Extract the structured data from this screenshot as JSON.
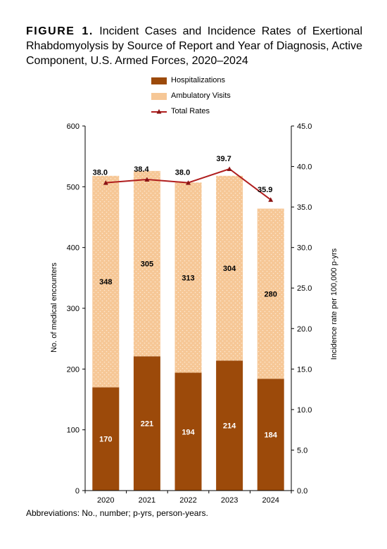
{
  "figure": {
    "label": "FIGURE 1.",
    "title": "Incident Cases and Incidence Rates of Exertional Rhabdomyolysis by Source of Report and Year of Diagnosis, Active Component, U.S. Armed Forces, 2020–2024"
  },
  "footnote": "Abbreviations: No., number; p-yrs, person-years.",
  "colors": {
    "hospitalizations": "#9c4a0a",
    "ambulatory": "#f6c796",
    "ambulatory_dots": "#fde8d2",
    "rate_line": "#b01e1e",
    "rate_marker": "#8a1414"
  },
  "chart_data": {
    "type": "bar",
    "stacked": true,
    "categories": [
      "2020",
      "2021",
      "2022",
      "2023",
      "2024"
    ],
    "series": [
      {
        "name": "Hospitalizations",
        "type": "bar",
        "axis": "left",
        "values": [
          170,
          221,
          194,
          214,
          184
        ]
      },
      {
        "name": "Ambulatory Visits",
        "type": "bar",
        "axis": "left",
        "values": [
          348,
          305,
          313,
          304,
          280
        ]
      },
      {
        "name": "Total Rates",
        "type": "line",
        "axis": "right",
        "values": [
          38.0,
          38.4,
          38.0,
          39.7,
          35.9
        ]
      }
    ],
    "ylabel": "No. of medical encounters",
    "y2label": "Incidence rate per 100,000 p-yrs",
    "ylim": [
      0,
      600
    ],
    "y2lim": [
      0,
      45
    ],
    "yticks": [
      "0",
      "100",
      "200",
      "300",
      "400",
      "500",
      "600"
    ],
    "y2ticks": [
      "0.0",
      "5.0",
      "10.0",
      "15.0",
      "20.0",
      "25.0",
      "30.0",
      "35.0",
      "40.0",
      "45.0"
    ],
    "hosp_labels": [
      "170",
      "221",
      "194",
      "214",
      "184"
    ],
    "amb_labels": [
      "348",
      "305",
      "313",
      "304",
      "280"
    ],
    "rate_labels": [
      "38.0",
      "38.4",
      "38.0",
      "39.7",
      "35.9"
    ],
    "legend_position": "top",
    "grid": false
  }
}
